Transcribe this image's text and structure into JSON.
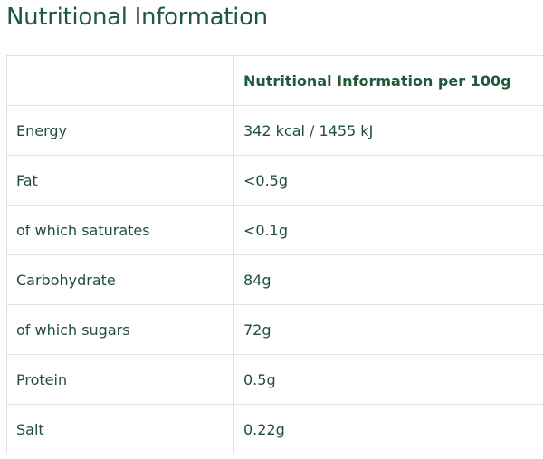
{
  "title": "Nutritional Information",
  "table": {
    "header": [
      "",
      "Nutritional Information per 100g"
    ],
    "rows": [
      [
        "Energy",
        "342 kcal / 1455 kJ"
      ],
      [
        "Fat",
        "<0.5g"
      ],
      [
        "of which saturates",
        "<0.1g"
      ],
      [
        "Carbohydrate",
        "84g"
      ],
      [
        "of which sugars",
        "72g"
      ],
      [
        "Protein",
        "0.5g"
      ],
      [
        "Salt",
        "0.22g"
      ]
    ]
  },
  "colors": {
    "text": "#1e5a3a",
    "border": "#e3e3e3"
  }
}
